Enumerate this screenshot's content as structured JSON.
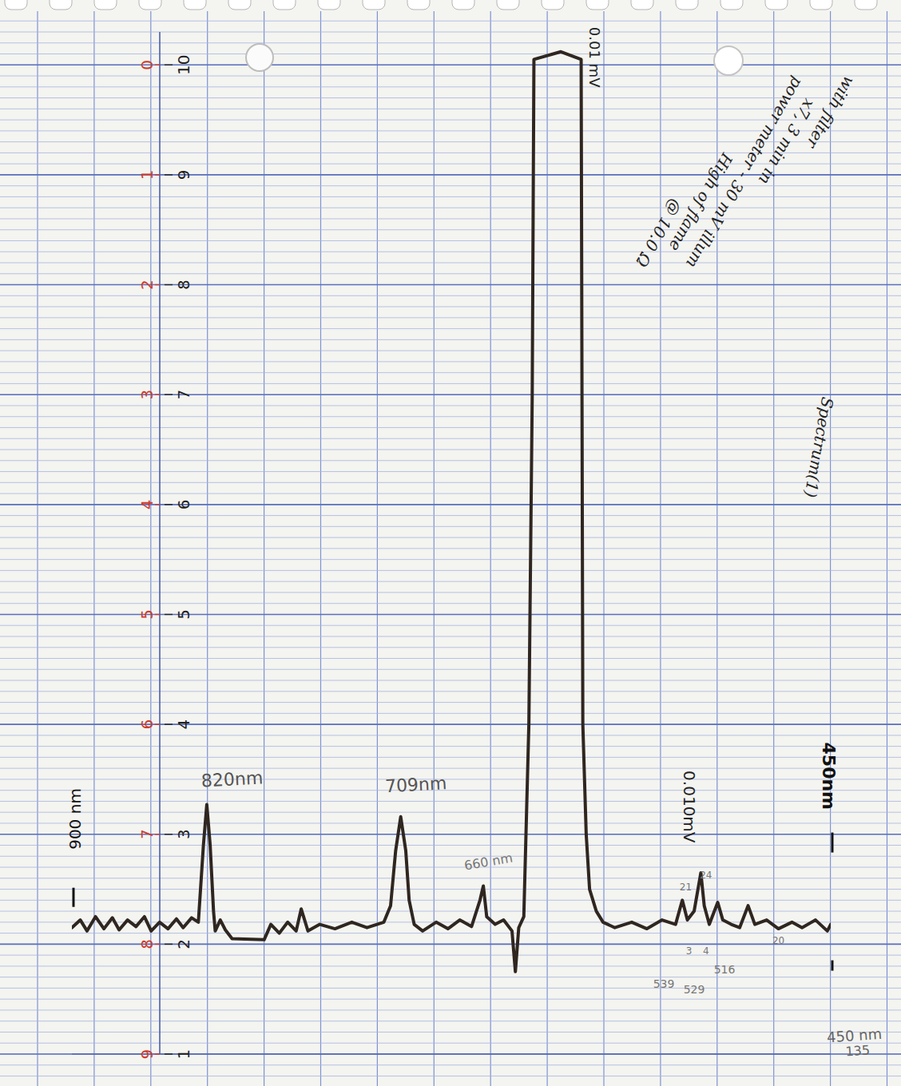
{
  "chart_data": {
    "type": "line",
    "xlim": [
      900,
      450
    ],
    "ylim": [
      1,
      10.3
    ],
    "yticks": [
      1,
      2,
      3,
      4,
      5,
      6,
      7,
      8,
      9,
      10
    ],
    "y2lim": [
      9,
      -0.3
    ],
    "y2ticks": [
      0,
      1,
      2,
      3,
      4,
      5,
      6,
      7,
      8,
      9
    ],
    "grid": true,
    "tick_labels": "y",
    "x": [
      900,
      895,
      891,
      886,
      881,
      876,
      872,
      867,
      862,
      857,
      853,
      848,
      843,
      838,
      834,
      829,
      825,
      822,
      820,
      818,
      816,
      815,
      812,
      809,
      805,
      786,
      782,
      777,
      772,
      767,
      764,
      760,
      753,
      744,
      734,
      725,
      715,
      711,
      708,
      705,
      702,
      700,
      697,
      692,
      684,
      677,
      670,
      663,
      658,
      656,
      654,
      649,
      644,
      639,
      637,
      635,
      632,
      629,
      627,
      626,
      610,
      598,
      597,
      595,
      593,
      589,
      585,
      578,
      568,
      559,
      550,
      542,
      538,
      535,
      531,
      527,
      525,
      522,
      517,
      514,
      509,
      504,
      499,
      495,
      488,
      481,
      473,
      467,
      459,
      452,
      450
    ],
    "series": [
      {
        "color": "#2f2620",
        "values": [
          2.15,
          2.22,
          2.12,
          2.25,
          2.14,
          2.24,
          2.13,
          2.22,
          2.16,
          2.25,
          2.12,
          2.2,
          2.14,
          2.23,
          2.15,
          2.24,
          2.2,
          2.9,
          3.27,
          2.9,
          2.3,
          2.12,
          2.22,
          2.13,
          2.05,
          2.04,
          2.18,
          2.1,
          2.2,
          2.12,
          2.32,
          2.12,
          2.18,
          2.14,
          2.2,
          2.15,
          2.2,
          2.35,
          2.85,
          3.16,
          2.85,
          2.4,
          2.18,
          2.12,
          2.2,
          2.14,
          2.22,
          2.16,
          2.4,
          2.53,
          2.25,
          2.18,
          2.22,
          2.12,
          1.75,
          2.15,
          2.25,
          4.0,
          7.0,
          10.05,
          10.12,
          10.05,
          4.0,
          3.0,
          2.5,
          2.3,
          2.2,
          2.15,
          2.2,
          2.14,
          2.22,
          2.18,
          2.4,
          2.22,
          2.3,
          2.65,
          2.35,
          2.18,
          2.38,
          2.22,
          2.18,
          2.15,
          2.35,
          2.18,
          2.22,
          2.14,
          2.2,
          2.15,
          2.22,
          2.12,
          2.18
        ]
      }
    ],
    "annotations": [
      {
        "text": "900 nm",
        "x": 898,
        "y": 3.14,
        "color": "#111111"
      },
      {
        "text": "820nm",
        "x": 805,
        "y": 3.5,
        "color": "#555555"
      },
      {
        "text": "709nm",
        "x": 696,
        "y": 3.45,
        "color": "#555555"
      },
      {
        "text": "660 nm",
        "x": 653,
        "y": 2.75,
        "color": "#777777"
      },
      {
        "text": "0.01 mV",
        "x": 590,
        "y": 10.07,
        "color": "#222222"
      },
      {
        "text": "0.010mV",
        "x": 534,
        "y": 3.25,
        "color": "#222222"
      },
      {
        "text": "450nm",
        "x": 451,
        "y": 3.53,
        "color": "#111111"
      },
      {
        "text": "Spectrum(1)",
        "x": 457,
        "y": 6.52,
        "color": "#222222"
      },
      {
        "text": "with filter",
        "x": 450,
        "y": 9.57,
        "color": "#222222"
      },
      {
        "text": "x7, 3 min in",
        "x": 476,
        "y": 9.3,
        "color": "#222222"
      },
      {
        "text": "power meter - 30 mV illum",
        "x": 501,
        "y": 9.02,
        "color": "#222222"
      },
      {
        "text": "High of flame",
        "x": 527,
        "y": 8.75,
        "color": "#222222"
      },
      {
        "text": "@ 10.0 Ω",
        "x": 552,
        "y": 8.47,
        "color": "#222222"
      },
      {
        "text": "21",
        "x": 536,
        "y": 2.52,
        "color": "#777777"
      },
      {
        "text": "24",
        "x": 524,
        "y": 2.63,
        "color": "#777777"
      },
      {
        "text": "3",
        "x": 534,
        "y": 1.94,
        "color": "#777777"
      },
      {
        "text": "4",
        "x": 524,
        "y": 1.94,
        "color": "#777777"
      },
      {
        "text": "20",
        "x": 481,
        "y": 2.03,
        "color": "#777777"
      },
      {
        "text": "539",
        "x": 549,
        "y": 1.64,
        "color": "#777777"
      },
      {
        "text": "529",
        "x": 531,
        "y": 1.59,
        "color": "#777777"
      },
      {
        "text": "516",
        "x": 513,
        "y": 1.77,
        "color": "#777777"
      },
      {
        "text": "450 nm",
        "x": 436,
        "y": 1.17,
        "color": "#666666"
      },
      {
        "text": "135",
        "x": 434,
        "y": 1.03,
        "color": "#666666"
      }
    ]
  }
}
